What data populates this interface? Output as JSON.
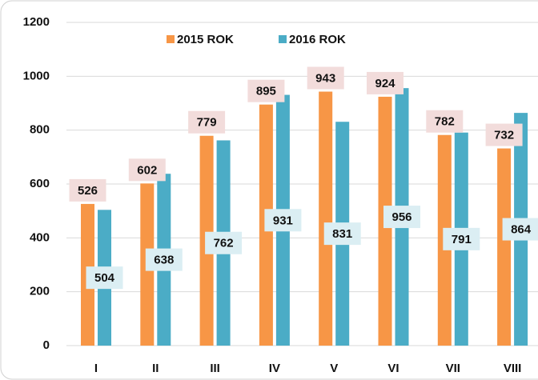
{
  "chart_data": {
    "type": "bar",
    "categories": [
      "I",
      "II",
      "III",
      "IV",
      "V",
      "VI",
      "VII",
      "VIII"
    ],
    "series": [
      {
        "name": "2015 ROK",
        "color": "#f79646",
        "values": [
          526,
          602,
          779,
          895,
          943,
          924,
          782,
          732
        ]
      },
      {
        "name": "2016 ROK",
        "color": "#4bacc6",
        "values": [
          504,
          638,
          762,
          931,
          831,
          956,
          791,
          864
        ]
      }
    ],
    "ylim": [
      0,
      1200
    ],
    "yticks": [
      0,
      200,
      400,
      600,
      800,
      1000,
      1200
    ],
    "grid": true,
    "legend": "top"
  }
}
